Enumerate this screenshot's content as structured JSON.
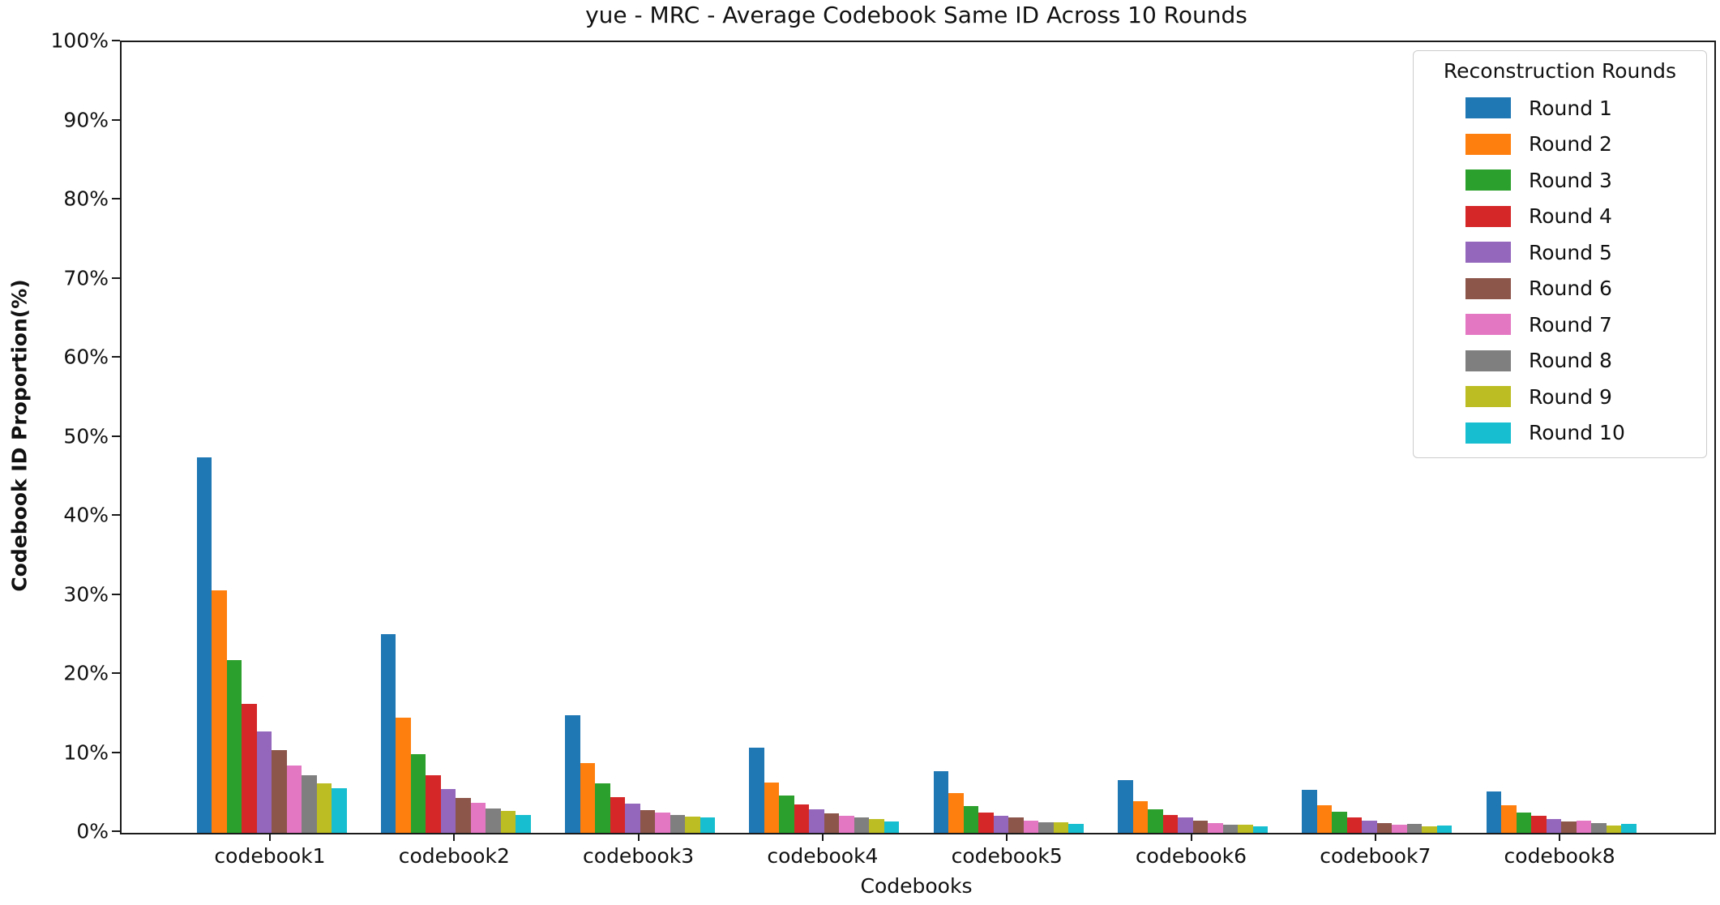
{
  "chart_data": {
    "type": "bar",
    "title": "yue - MRC - Average Codebook Same ID Across 10 Rounds",
    "xlabel": "Codebooks",
    "ylabel": "Codebook ID Proportion(%)",
    "categories": [
      "codebook1",
      "codebook2",
      "codebook3",
      "codebook4",
      "codebook5",
      "codebook6",
      "codebook7",
      "codebook8"
    ],
    "ylim": [
      0,
      100
    ],
    "ytick_labels": [
      "0%",
      "10%",
      "20%",
      "30%",
      "40%",
      "50%",
      "60%",
      "70%",
      "80%",
      "90%",
      "100%"
    ],
    "grid": false,
    "legend_title": "Reconstruction Rounds",
    "legend_position": "upper right",
    "series": [
      {
        "name": "Round 1",
        "color": "#1f77b4",
        "values": [
          47.5,
          25.1,
          14.9,
          10.8,
          7.8,
          6.7,
          5.4,
          5.2
        ]
      },
      {
        "name": "Round 2",
        "color": "#ff7f0e",
        "values": [
          30.7,
          14.6,
          8.8,
          6.4,
          5.0,
          4.0,
          3.5,
          3.5
        ]
      },
      {
        "name": "Round 3",
        "color": "#2ca02c",
        "values": [
          21.8,
          10.0,
          6.3,
          4.7,
          3.4,
          3.0,
          2.7,
          2.6
        ]
      },
      {
        "name": "Round 4",
        "color": "#d62728",
        "values": [
          16.3,
          7.3,
          4.5,
          3.6,
          2.6,
          2.3,
          2.0,
          2.2
        ]
      },
      {
        "name": "Round 5",
        "color": "#9467bd",
        "values": [
          12.8,
          5.5,
          3.7,
          3.0,
          2.2,
          1.9,
          1.5,
          1.7
        ]
      },
      {
        "name": "Round 6",
        "color": "#8c564b",
        "values": [
          10.5,
          4.4,
          2.9,
          2.5,
          1.9,
          1.5,
          1.2,
          1.4
        ]
      },
      {
        "name": "Round 7",
        "color": "#e377c2",
        "values": [
          8.5,
          3.8,
          2.6,
          2.2,
          1.5,
          1.2,
          1.0,
          1.5
        ]
      },
      {
        "name": "Round 8",
        "color": "#7f7f7f",
        "values": [
          7.3,
          3.1,
          2.3,
          1.9,
          1.3,
          1.0,
          1.1,
          1.2
        ]
      },
      {
        "name": "Round 9",
        "color": "#bcbd22",
        "values": [
          6.3,
          2.8,
          2.1,
          1.7,
          1.3,
          1.0,
          0.8,
          0.9
        ]
      },
      {
        "name": "Round 10",
        "color": "#17becf",
        "values": [
          5.6,
          2.3,
          1.9,
          1.4,
          1.1,
          0.8,
          0.9,
          1.1
        ]
      }
    ]
  }
}
